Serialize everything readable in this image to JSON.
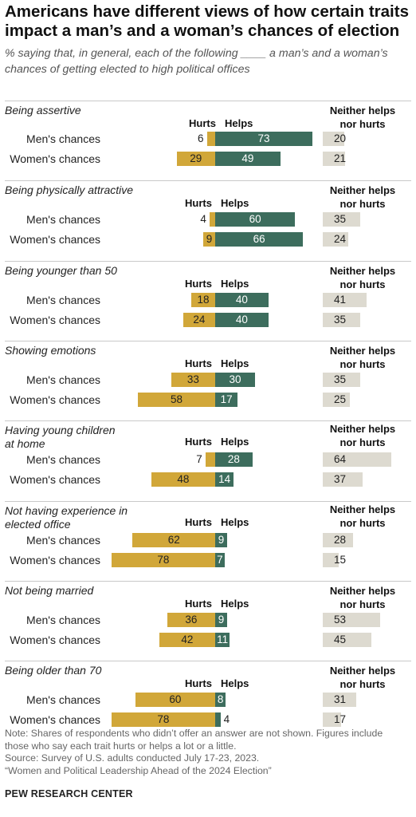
{
  "header": {
    "title_line1": "Americans have different views of how certain traits",
    "title_line2": "impact a man’s and a woman’s chances of election",
    "subtitle_line1": "% saying that, in general, each of the following ____ a man’s and a woman’s",
    "subtitle_line2": "chances of getting elected to high political offices"
  },
  "chart_data": {
    "type": "bar",
    "orientation": "horizontal-diverging",
    "legend": {
      "hurts": "Hurts",
      "helps": "Helps",
      "neither_line1": "Neither helps",
      "neither_line2": "nor hurts"
    },
    "colors": {
      "hurts": "#d1a739",
      "helps": "#3d6d5d",
      "neither": "#dddad0"
    },
    "row_labels": [
      "Men's chances",
      "Women's chances"
    ],
    "groups": [
      {
        "title_lines": [
          "Being assertive"
        ],
        "rows": [
          {
            "hurts": 6,
            "helps": 73,
            "neither": 20
          },
          {
            "hurts": 29,
            "helps": 49,
            "neither": 21
          }
        ]
      },
      {
        "title_lines": [
          "Being physically attractive"
        ],
        "rows": [
          {
            "hurts": 4,
            "helps": 60,
            "neither": 35
          },
          {
            "hurts": 9,
            "helps": 66,
            "neither": 24
          }
        ]
      },
      {
        "title_lines": [
          "Being younger than 50"
        ],
        "rows": [
          {
            "hurts": 18,
            "helps": 40,
            "neither": 41
          },
          {
            "hurts": 24,
            "helps": 40,
            "neither": 35
          }
        ]
      },
      {
        "title_lines": [
          "Showing emotions"
        ],
        "rows": [
          {
            "hurts": 33,
            "helps": 30,
            "neither": 35
          },
          {
            "hurts": 58,
            "helps": 17,
            "neither": 25
          }
        ]
      },
      {
        "title_lines": [
          "Having young children",
          "at home"
        ],
        "rows": [
          {
            "hurts": 7,
            "helps": 28,
            "neither": 64
          },
          {
            "hurts": 48,
            "helps": 14,
            "neither": 37
          }
        ]
      },
      {
        "title_lines": [
          "Not having experience in",
          "elected office"
        ],
        "rows": [
          {
            "hurts": 62,
            "helps": 9,
            "neither": 28
          },
          {
            "hurts": 78,
            "helps": 7,
            "neither": 15
          }
        ]
      },
      {
        "title_lines": [
          "Not being married"
        ],
        "rows": [
          {
            "hurts": 36,
            "helps": 9,
            "neither": 53
          },
          {
            "hurts": 42,
            "helps": 11,
            "neither": 45
          }
        ]
      },
      {
        "title_lines": [
          "Being older than 70"
        ],
        "rows": [
          {
            "hurts": 60,
            "helps": 8,
            "neither": 31
          },
          {
            "hurts": 78,
            "helps": 4,
            "neither": 17
          }
        ]
      }
    ]
  },
  "footer": {
    "note_line1": "Note: Shares of respondents who didn’t offer an answer are not shown. Figures include",
    "note_line2": "those who say each trait hurts or helps a lot or a little.",
    "source": "Source: Survey of U.S. adults conducted July 17-23, 2023.",
    "report": "“Women and Political Leadership Ahead of the 2024 Election”",
    "brand": "PEW RESEARCH CENTER"
  }
}
